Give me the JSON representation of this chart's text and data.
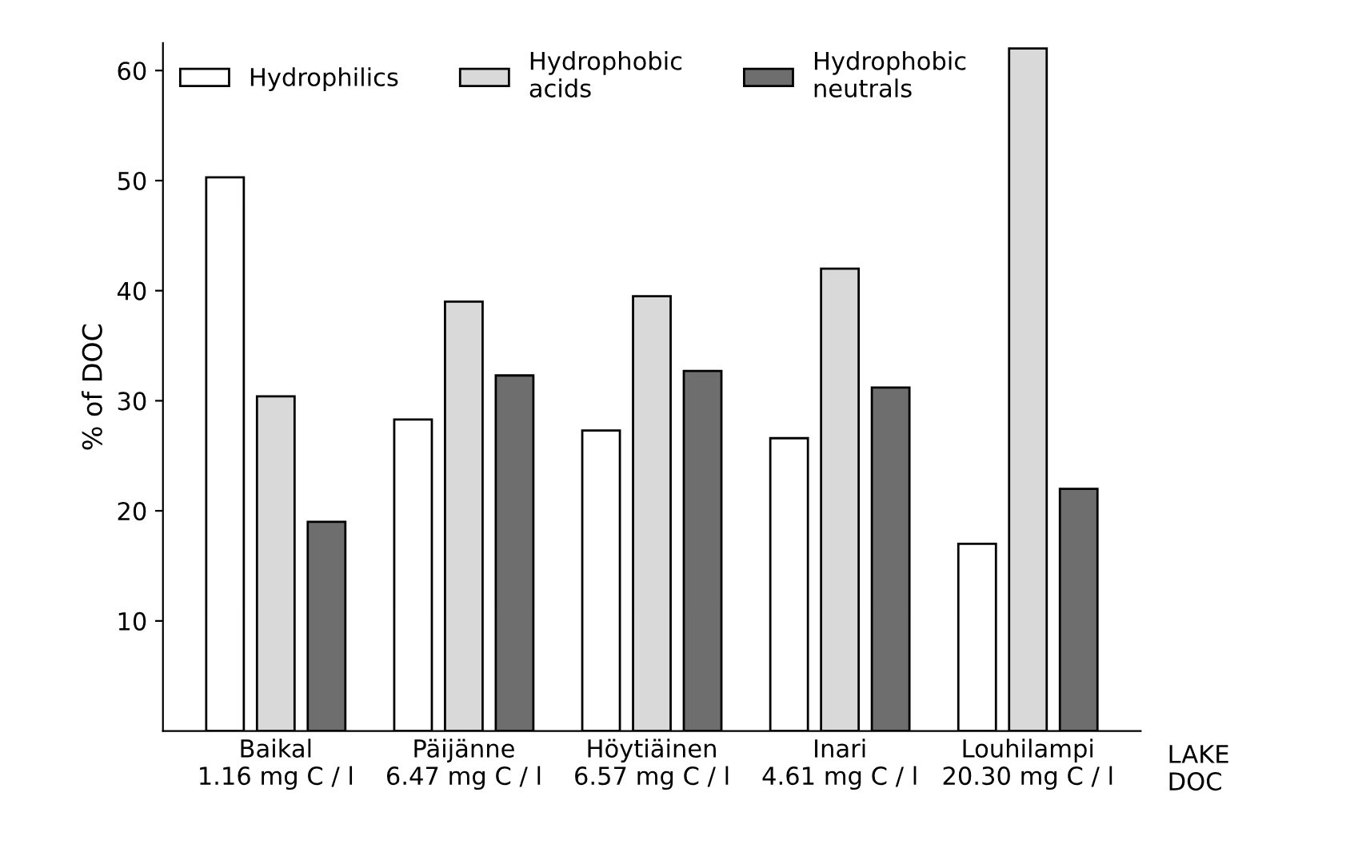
{
  "chart_data": {
    "type": "bar",
    "ylabel": "% of DOC",
    "categories": [
      "Baikal\n1.16 mg C / l",
      "Päijänne\n6.47 mg C / l",
      "Höytiäinen\n6.57 mg C / l",
      "Inari\n4.61 mg C / l",
      "Louhilampi\n20.30 mg C / l"
    ],
    "series": [
      {
        "name": "Hydrophilics",
        "color": "#ffffff",
        "values": [
          50.3,
          28.3,
          27.3,
          26.6,
          17.0
        ]
      },
      {
        "name": "Hydrophobic\nacids",
        "color": "#d9d9d9",
        "values": [
          30.4,
          39.0,
          39.5,
          42.0,
          62.0
        ]
      },
      {
        "name": "Hydrophobic\nneutrals",
        "color": "#6e6e6e",
        "values": [
          19.0,
          32.3,
          32.7,
          31.2,
          22.0
        ]
      }
    ],
    "ylim": [
      0,
      62.5
    ],
    "yticks": [
      10,
      20,
      30,
      40,
      50,
      60
    ],
    "grid": false,
    "legend": "top",
    "annotations": [
      "LAKE\nDOC"
    ]
  }
}
